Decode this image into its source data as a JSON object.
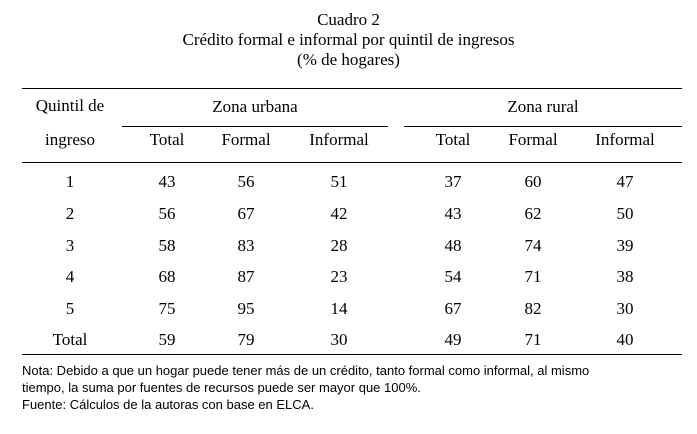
{
  "title": "Cuadro 2",
  "subtitle": "Crédito formal e informal por quintil de ingresos",
  "unit": "(% de hogares)",
  "table": {
    "row_header": [
      "Quintil de",
      "ingreso"
    ],
    "group_urban": "Zona urbana",
    "group_rural": "Zona rural",
    "columns": [
      "Total",
      "Formal",
      "Informal",
      "Total",
      "Formal",
      "Informal"
    ],
    "rows": [
      [
        "1",
        "43",
        "56",
        "51",
        "37",
        "60",
        "47"
      ],
      [
        "2",
        "56",
        "67",
        "42",
        "43",
        "62",
        "50"
      ],
      [
        "3",
        "58",
        "83",
        "28",
        "48",
        "74",
        "39"
      ],
      [
        "4",
        "68",
        "87",
        "23",
        "54",
        "71",
        "38"
      ],
      [
        "5",
        "75",
        "95",
        "14",
        "67",
        "82",
        "30"
      ],
      [
        "Total",
        "59",
        "79",
        "30",
        "49",
        "71",
        "40"
      ]
    ]
  },
  "notes": [
    "Nota: Debido a que un hogar puede tener más de un crédito, tanto formal como informal, al mismo",
    "tiempo, la suma por fuentes de recursos puede ser mayor que 100%.",
    "Fuente: Cálculos de la autoras con base en ELCA."
  ]
}
